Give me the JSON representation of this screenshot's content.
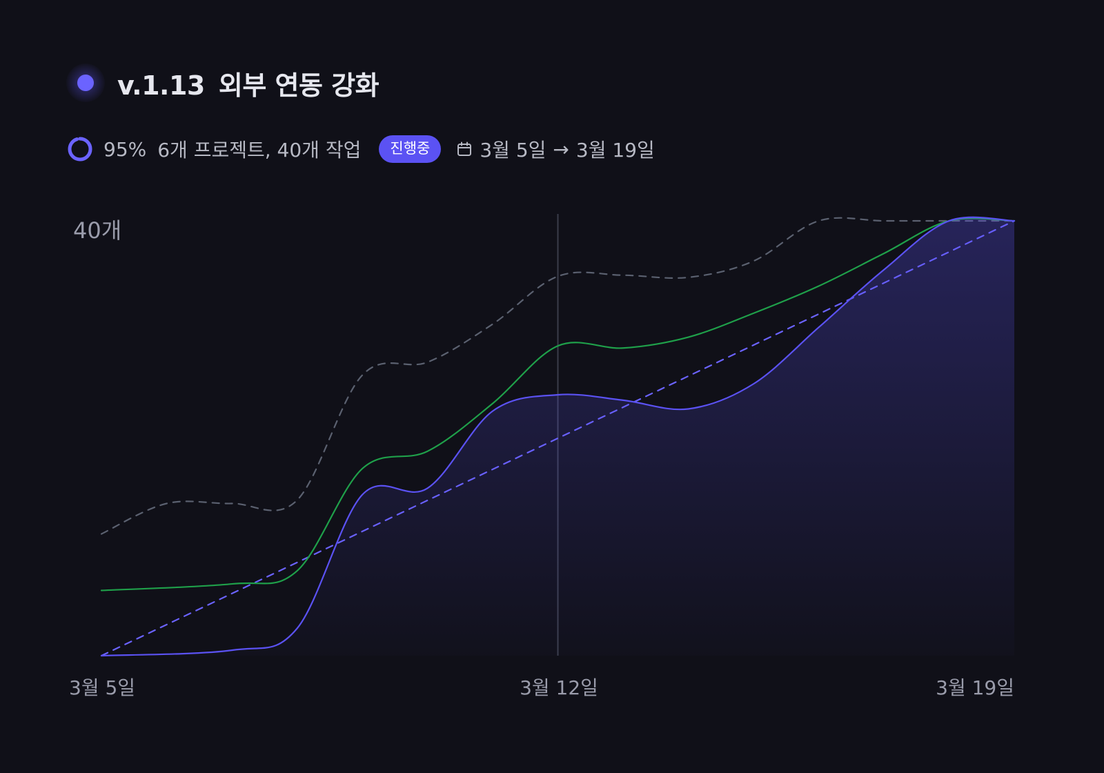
{
  "release": {
    "version": "v.1.13",
    "name": "외부 연동 강화",
    "accent_color": "#6b63ff"
  },
  "meta": {
    "progress_percent": 95,
    "progress_label": "95%",
    "counts_label": "6개 프로젝트, 40개 작업",
    "status_badge": "진행중",
    "calendar_icon": "calendar-icon",
    "start_date": "3월 5일",
    "arrow": "→",
    "end_date": "3월 19일"
  },
  "chart_data": {
    "type": "line",
    "y_max_label": "40개",
    "ylim": [
      0,
      40
    ],
    "x_range": [
      "2024-03-05",
      "2024-03-19"
    ],
    "x_tick_labels": [
      "3월 5일",
      "3월 12일",
      "3월 19일"
    ],
    "current_marker_label": "3월 12일",
    "grid": false,
    "series": [
      {
        "style": "dashed",
        "color": "#5b6170",
        "x": [
          0,
          1,
          2,
          3,
          4,
          5,
          6,
          7,
          8,
          9,
          10,
          11,
          12,
          13,
          14
        ],
        "values": [
          11.2,
          14.0,
          14.0,
          14.3,
          25.8,
          27.0,
          30.5,
          34.9,
          35.0,
          34.8,
          36.3,
          40.0,
          40.0,
          40.0,
          40.0
        ]
      },
      {
        "style": "dashed",
        "color": "#6b63ff",
        "x": [
          0,
          14
        ],
        "values": [
          0,
          40
        ]
      },
      {
        "style": "solid",
        "color": "#1fa04a",
        "x": [
          0,
          2,
          3,
          4,
          5,
          6,
          7,
          8,
          9,
          10,
          11,
          12,
          13,
          14
        ],
        "values": [
          6.0,
          6.6,
          7.8,
          17.2,
          18.8,
          23.2,
          28.5,
          28.3,
          29.3,
          31.5,
          34.0,
          37.0,
          40.0,
          40.0
        ]
      },
      {
        "style": "solid-filled",
        "color": "#5b52f3",
        "x": [
          0,
          2,
          3,
          4,
          5,
          6,
          7,
          8,
          9,
          10,
          11,
          12,
          13,
          14
        ],
        "values": [
          0,
          0.5,
          2.5,
          14.8,
          15.4,
          22.5,
          24.0,
          23.5,
          22.7,
          25.0,
          30.2,
          35.5,
          40.0,
          40.0
        ]
      }
    ]
  }
}
